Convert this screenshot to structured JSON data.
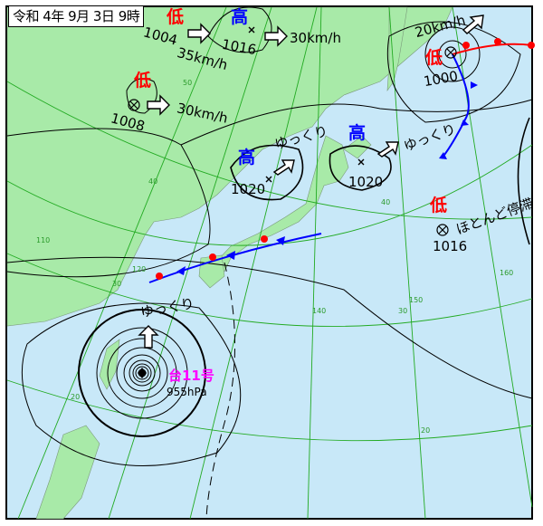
{
  "title": "令和 4年 9月 3日 9時",
  "colors": {
    "sea": "#c8e8f8",
    "land": "#a8eaa8",
    "grid": "#22aa22",
    "isobar": "#000000",
    "low": "#ff0000",
    "high": "#0000ff",
    "typhoon": "#ff00ff",
    "warm_front": "#ff0000",
    "cold_front": "#0000ff"
  },
  "systems": [
    {
      "type_label": "低",
      "pressure": "1004",
      "speed": "35km/h"
    },
    {
      "type_label": "高",
      "pressure": "1016",
      "speed": "30km/h"
    },
    {
      "type_label": "低",
      "pressure": "1008",
      "speed": "30km/h"
    },
    {
      "type_label": "高",
      "pressure": "1020",
      "speed": "ゆっくり"
    },
    {
      "type_label": "高",
      "pressure": "1020",
      "speed": "ゆっくり"
    },
    {
      "type_label": "低",
      "pressure": "1000",
      "speed": "20km/h"
    },
    {
      "type_label": "低",
      "pressure": "1016",
      "speed": "ほとんど停滞"
    }
  ],
  "typhoon": {
    "name": "台11号",
    "pressure": "955hPa",
    "speed": "ゆっくり"
  },
  "grid_labels": {
    "lat": [
      "50",
      "40",
      "40",
      "30",
      "30",
      "20",
      "20"
    ],
    "lon": [
      "110",
      "120",
      "140",
      "150",
      "160"
    ]
  },
  "icons": [
    "low-center-icon",
    "high-center-x-icon",
    "movement-arrow-icon",
    "typhoon-center-icon"
  ]
}
